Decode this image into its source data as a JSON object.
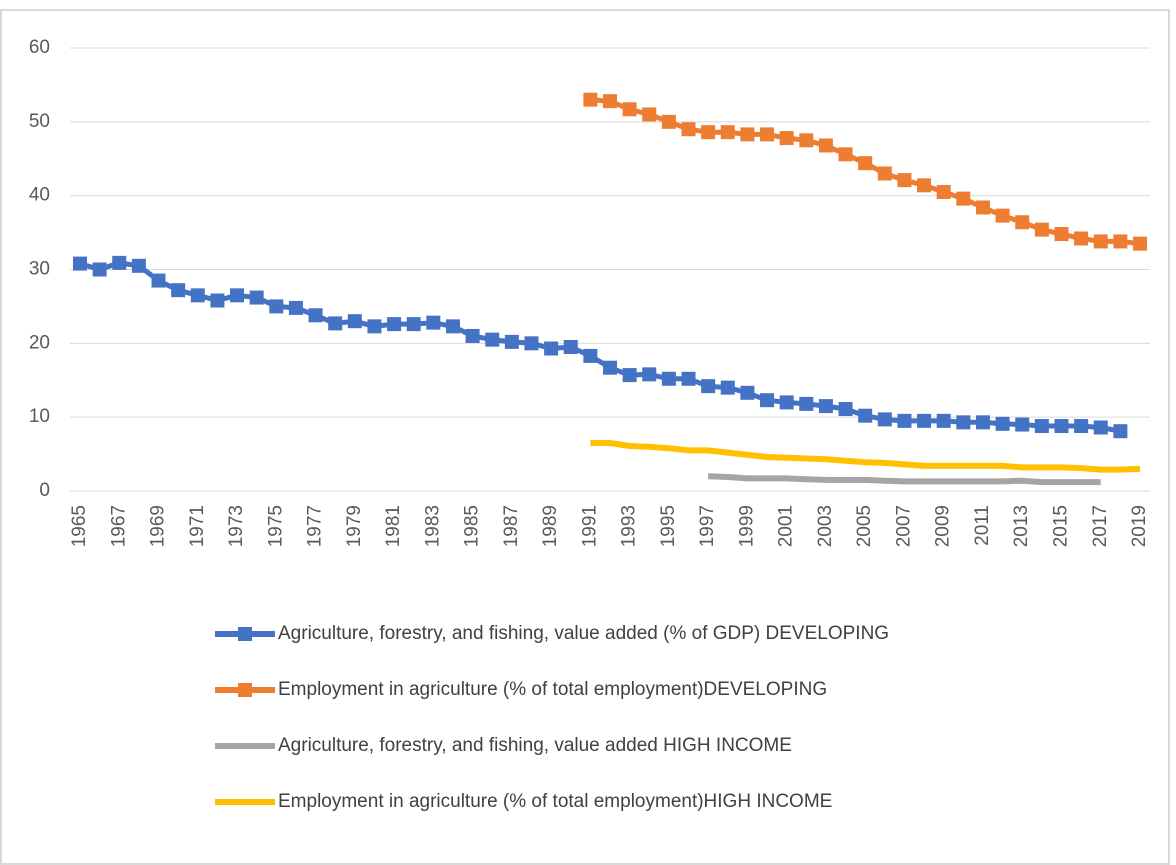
{
  "chart_data": {
    "type": "line",
    "categories": [
      "1965",
      null,
      "1967",
      null,
      "1969",
      null,
      "1971",
      null,
      "1973",
      null,
      "1975",
      null,
      "1977",
      null,
      "1979",
      null,
      "1981",
      null,
      "1983",
      null,
      "1985",
      null,
      "1987",
      null,
      "1989",
      null,
      "1991",
      null,
      "1993",
      null,
      "1995",
      null,
      "1997",
      null,
      "1999",
      null,
      "2001",
      null,
      "2003",
      null,
      "2005",
      null,
      "2007",
      null,
      "2009",
      null,
      "2011",
      null,
      "2013",
      null,
      "2015",
      null,
      "2017",
      null,
      "2019"
    ],
    "series": [
      {
        "name": "Agriculture, forestry, and fishing, value added (% of GDP) DEVELOPING",
        "color": "#4472c4",
        "marker": "square",
        "values": [
          30.8,
          30.0,
          30.9,
          30.5,
          28.5,
          27.2,
          26.5,
          25.8,
          26.5,
          26.2,
          25.0,
          24.8,
          23.8,
          22.7,
          23.0,
          22.3,
          22.6,
          22.6,
          22.8,
          22.3,
          21.0,
          20.5,
          20.2,
          20.0,
          19.3,
          19.5,
          18.3,
          16.7,
          15.7,
          15.8,
          15.2,
          15.2,
          14.2,
          14.0,
          13.3,
          12.3,
          12.0,
          11.8,
          11.5,
          11.1,
          10.2,
          9.7,
          9.5,
          9.5,
          9.5,
          9.3,
          9.3,
          9.1,
          9.0,
          8.8,
          8.8,
          8.8,
          8.6,
          8.1,
          null
        ]
      },
      {
        "name": "Employment in agriculture (% of total employment)DEVELOPING",
        "color": "#ed7d31",
        "marker": "square",
        "values": [
          null,
          null,
          null,
          null,
          null,
          null,
          null,
          null,
          null,
          null,
          null,
          null,
          null,
          null,
          null,
          null,
          null,
          null,
          null,
          null,
          null,
          null,
          null,
          null,
          null,
          null,
          53.0,
          52.8,
          51.7,
          51.0,
          50.0,
          49.0,
          48.6,
          48.6,
          48.3,
          48.3,
          47.8,
          47.5,
          46.8,
          45.6,
          44.4,
          43.0,
          42.1,
          41.4,
          40.5,
          39.6,
          38.4,
          37.3,
          36.4,
          35.4,
          34.8,
          34.2,
          33.8,
          33.8,
          33.5
        ]
      },
      {
        "name": "Agriculture, forestry, and fishing, value added HIGH INCOME",
        "color": "#a5a5a5",
        "marker": "none",
        "values": [
          null,
          null,
          null,
          null,
          null,
          null,
          null,
          null,
          null,
          null,
          null,
          null,
          null,
          null,
          null,
          null,
          null,
          null,
          null,
          null,
          null,
          null,
          null,
          null,
          null,
          null,
          null,
          null,
          null,
          null,
          null,
          null,
          2.0,
          1.9,
          1.7,
          1.7,
          1.7,
          1.6,
          1.5,
          1.5,
          1.5,
          1.4,
          1.3,
          1.3,
          1.3,
          1.3,
          1.3,
          1.3,
          1.4,
          1.2,
          1.2,
          1.2,
          1.2,
          null,
          null
        ]
      },
      {
        "name": "Employment in agriculture (% of total employment)HIGH INCOME",
        "color": "#ffc000",
        "marker": "none",
        "values": [
          null,
          null,
          null,
          null,
          null,
          null,
          null,
          null,
          null,
          null,
          null,
          null,
          null,
          null,
          null,
          null,
          null,
          null,
          null,
          null,
          null,
          null,
          null,
          null,
          null,
          null,
          6.5,
          6.5,
          6.1,
          6.0,
          5.8,
          5.5,
          5.5,
          5.2,
          4.9,
          4.6,
          4.5,
          4.4,
          4.3,
          4.1,
          3.9,
          3.8,
          3.6,
          3.4,
          3.4,
          3.4,
          3.4,
          3.4,
          3.2,
          3.2,
          3.2,
          3.1,
          2.9,
          2.9,
          3.0
        ]
      }
    ],
    "ylim": [
      0,
      60
    ],
    "yticks": [
      0,
      10,
      20,
      30,
      40,
      50,
      60
    ],
    "grid": true,
    "legend": "bottom"
  }
}
